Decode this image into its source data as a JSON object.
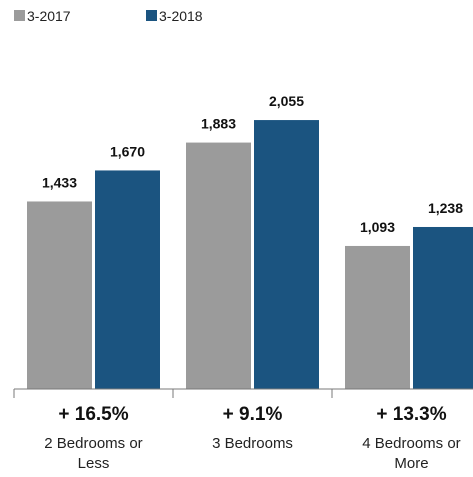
{
  "chart_data": {
    "type": "bar",
    "categories": [
      [
        "2 Bedrooms or",
        "Less"
      ],
      [
        "3 Bedrooms"
      ],
      [
        "4 Bedrooms or",
        "More"
      ]
    ],
    "series": [
      {
        "name": "3-2017",
        "color": "#9b9b9b",
        "values": [
          1433,
          1883,
          1093
        ]
      },
      {
        "name": "3-2018",
        "color": "#1b5480",
        "values": [
          1670,
          2055,
          1238
        ]
      }
    ],
    "value_labels": [
      [
        "1,433",
        "1,883",
        "1,093"
      ],
      [
        "1,670",
        "2,055",
        "1,238"
      ]
    ],
    "changes": [
      "+ 16.5%",
      "+ 9.1%",
      "+ 13.3%"
    ],
    "ylim": [
      0,
      2300
    ],
    "grid": false,
    "legend_position": "top-left"
  }
}
